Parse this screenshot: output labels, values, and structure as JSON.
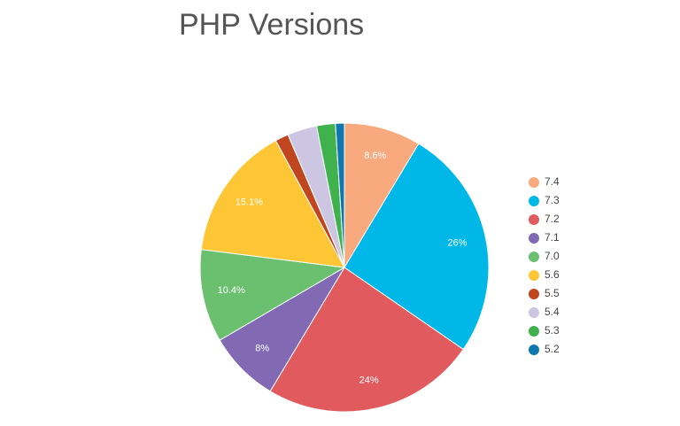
{
  "chart_data": {
    "type": "pie",
    "title": "PHP Versions",
    "categories": [
      "7.4",
      "7.3",
      "7.2",
      "7.1",
      "7.0",
      "5.6",
      "5.5",
      "5.4",
      "5.3",
      "5.2"
    ],
    "values": [
      8.6,
      26,
      24,
      8,
      10.4,
      15.1,
      1.5,
      3.3,
      2.1,
      1.0
    ],
    "value_labels": [
      "8.6%",
      "26%",
      "24%",
      "8%",
      "10.4%",
      "15.1%",
      null,
      null,
      null,
      null
    ],
    "colors": [
      "#f8a97e",
      "#00b8e8",
      "#e15a5d",
      "#8169b4",
      "#6bc070",
      "#fec534",
      "#c0461f",
      "#cdc6e2",
      "#3fb24e",
      "#0f78ae"
    ],
    "legend": "right"
  }
}
